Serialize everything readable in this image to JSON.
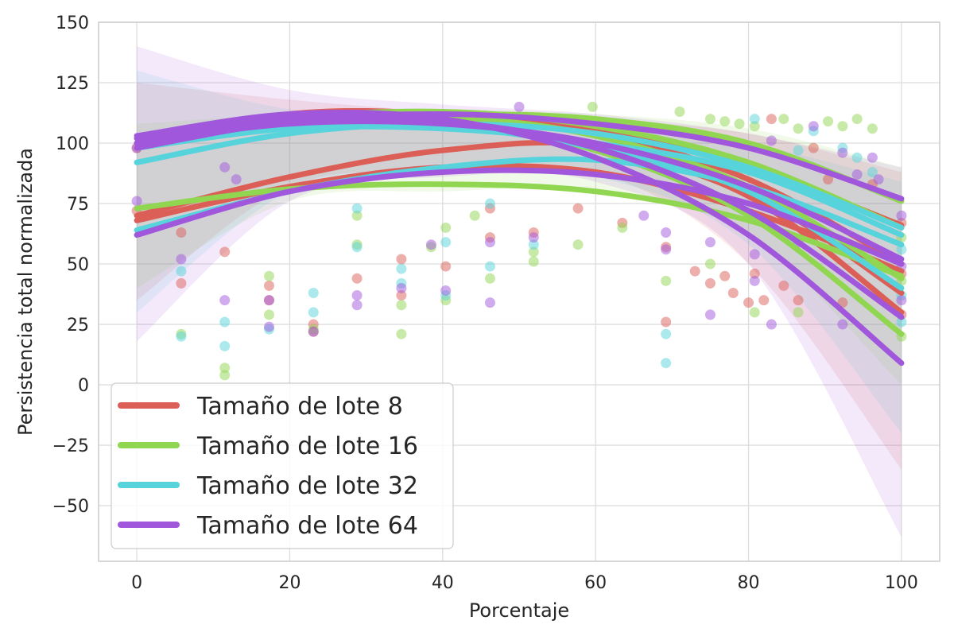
{
  "chart_data": {
    "type": "scatter",
    "title": "",
    "xlabel": "Porcentaje",
    "ylabel": "Persistencia total normalizada",
    "xlim": [
      -5,
      105
    ],
    "ylim": [
      -73,
      150
    ],
    "xticks": [
      0,
      20,
      40,
      60,
      80,
      100
    ],
    "yticks": [
      -50,
      -25,
      0,
      25,
      50,
      75,
      100,
      125,
      150
    ],
    "xtick_labels": [
      "0",
      "20",
      "40",
      "60",
      "80",
      "100"
    ],
    "ytick_labels": [
      "−50",
      "−25",
      "0",
      "25",
      "50",
      "75",
      "100",
      "125",
      "150"
    ],
    "grid": true,
    "legend_position": "lower-left",
    "series": [
      {
        "name": "Tamaño de lote 8",
        "color": "#db5f57",
        "fits": [
          {
            "x": [
              0,
              20,
              40,
              60,
              80,
              100
            ],
            "y": [
              98,
              112,
              112,
              105,
              90,
              66
            ]
          },
          {
            "x": [
              0,
              20,
              40,
              60,
              80,
              100
            ],
            "y": [
              70,
              86,
              97,
              99,
              80,
              38
            ]
          },
          {
            "x": [
              0,
              20,
              40,
              60,
              80,
              100
            ],
            "y": [
              100,
              109,
              110,
              104,
              85,
              50
            ]
          },
          {
            "x": [
              0,
              20,
              40,
              60,
              80,
              100
            ],
            "y": [
              68,
              82,
              90,
              88,
              72,
              47
            ]
          },
          {
            "x": [
              0,
              20,
              40,
              60,
              80,
              100
            ],
            "y": [
              102,
              110,
              108,
              98,
              78,
              30
            ]
          }
        ],
        "points": [
          [
            0,
            98
          ],
          [
            0,
            72
          ],
          [
            5.8,
            63
          ],
          [
            5.8,
            42
          ],
          [
            11.5,
            55
          ],
          [
            17.3,
            41
          ],
          [
            17.3,
            35
          ],
          [
            23.1,
            25
          ],
          [
            23.1,
            22
          ],
          [
            28.8,
            44
          ],
          [
            34.6,
            52
          ],
          [
            34.6,
            37
          ],
          [
            40.4,
            49
          ],
          [
            46.2,
            61
          ],
          [
            46.2,
            73
          ],
          [
            51.9,
            63
          ],
          [
            57.7,
            73
          ],
          [
            63.5,
            67
          ],
          [
            69.2,
            26
          ],
          [
            69.2,
            57
          ],
          [
            73,
            47
          ],
          [
            75,
            42
          ],
          [
            76.9,
            45
          ],
          [
            78,
            38
          ],
          [
            80,
            34
          ],
          [
            80.8,
            46
          ],
          [
            82,
            35
          ],
          [
            83,
            110
          ],
          [
            84.6,
            41
          ],
          [
            86.5,
            35
          ],
          [
            88.5,
            98
          ],
          [
            90.4,
            85
          ],
          [
            92.3,
            34
          ],
          [
            96.2,
            83
          ],
          [
            100,
            29
          ],
          [
            100,
            46
          ],
          [
            100,
            67
          ]
        ],
        "band": {
          "x": [
            0,
            20,
            40,
            60,
            80,
            100
          ],
          "upper": [
            125,
            118,
            113,
            110,
            104,
            88
          ],
          "lower": [
            35,
            82,
            88,
            88,
            50,
            -35
          ]
        }
      },
      {
        "name": "Tamaño de lote 16",
        "color": "#91d651",
        "fits": [
          {
            "x": [
              0,
              20,
              40,
              60,
              80,
              100
            ],
            "y": [
              73,
              81,
              83,
              80,
              68,
              45
            ]
          },
          {
            "x": [
              0,
              20,
              40,
              60,
              80,
              100
            ],
            "y": [
              100,
              110,
              112,
              110,
              100,
              76
            ]
          },
          {
            "x": [
              0,
              20,
              40,
              60,
              80,
              100
            ],
            "y": [
              98,
              110,
              113,
              107,
              92,
              65
            ]
          },
          {
            "x": [
              0,
              20,
              40,
              60,
              80,
              100
            ],
            "y": [
              102,
              111,
              111,
              103,
              82,
              44
            ]
          },
          {
            "x": [
              0,
              20,
              40,
              60,
              80,
              100
            ],
            "y": [
              100,
              109,
              108,
              97,
              70,
              21
            ]
          }
        ],
        "points": [
          [
            5.8,
            21
          ],
          [
            11.5,
            4
          ],
          [
            11.5,
            7
          ],
          [
            17.3,
            45
          ],
          [
            17.3,
            29
          ],
          [
            23.1,
            23
          ],
          [
            28.8,
            58
          ],
          [
            28.8,
            70
          ],
          [
            34.6,
            21
          ],
          [
            34.6,
            33
          ],
          [
            38.5,
            57
          ],
          [
            40.4,
            35
          ],
          [
            40.4,
            65
          ],
          [
            44.2,
            70
          ],
          [
            46.2,
            44
          ],
          [
            51.9,
            51
          ],
          [
            51.9,
            55
          ],
          [
            57.7,
            58
          ],
          [
            59.6,
            115
          ],
          [
            63.5,
            65
          ],
          [
            69.2,
            43
          ],
          [
            71,
            113
          ],
          [
            75,
            50
          ],
          [
            75,
            110
          ],
          [
            76.9,
            109
          ],
          [
            78.8,
            108
          ],
          [
            80.8,
            30
          ],
          [
            80.8,
            107
          ],
          [
            84.6,
            110
          ],
          [
            86.5,
            30
          ],
          [
            86.5,
            106
          ],
          [
            90.4,
            109
          ],
          [
            92.3,
            107
          ],
          [
            94.2,
            110
          ],
          [
            96.2,
            106
          ],
          [
            100,
            20
          ],
          [
            100,
            43
          ],
          [
            100,
            61
          ]
        ],
        "band": {
          "x": [
            0,
            20,
            40,
            60,
            80,
            100
          ],
          "upper": [
            108,
            112,
            114,
            112,
            106,
            90
          ],
          "lower": [
            40,
            76,
            80,
            80,
            62,
            0
          ]
        }
      },
      {
        "name": "Tamaño de lote 32",
        "color": "#57d3db",
        "fits": [
          {
            "x": [
              0,
              20,
              40,
              60,
              80,
              100
            ],
            "y": [
              64,
              80,
              90,
              93,
              82,
              58
            ]
          },
          {
            "x": [
              0,
              20,
              40,
              60,
              80,
              100
            ],
            "y": [
              92,
              104,
              108,
              104,
              90,
              65
            ]
          },
          {
            "x": [
              0,
              20,
              40,
              60,
              80,
              100
            ],
            "y": [
              100,
              108,
              107,
              98,
              80,
              40
            ]
          },
          {
            "x": [
              0,
              20,
              40,
              60,
              80,
              100
            ],
            "y": [
              98,
              106,
              106,
              100,
              88,
              62
            ]
          }
        ],
        "points": [
          [
            5.8,
            20
          ],
          [
            5.8,
            47
          ],
          [
            11.5,
            16
          ],
          [
            11.5,
            26
          ],
          [
            17.3,
            23
          ],
          [
            23.1,
            30
          ],
          [
            23.1,
            38
          ],
          [
            28.8,
            57
          ],
          [
            28.8,
            73
          ],
          [
            34.6,
            42
          ],
          [
            34.6,
            48
          ],
          [
            40.4,
            37
          ],
          [
            40.4,
            59
          ],
          [
            46.2,
            49
          ],
          [
            46.2,
            75
          ],
          [
            51.9,
            58
          ],
          [
            69.2,
            21
          ],
          [
            69.2,
            9
          ],
          [
            71,
            105
          ],
          [
            80.8,
            110
          ],
          [
            86.5,
            97
          ],
          [
            88.5,
            105
          ],
          [
            92.3,
            98
          ],
          [
            94.2,
            94
          ],
          [
            96.2,
            88
          ],
          [
            100,
            26
          ],
          [
            100,
            37
          ],
          [
            100,
            56
          ]
        ],
        "band": {
          "x": [
            0,
            20,
            40,
            60,
            80,
            100
          ],
          "upper": [
            130,
            114,
            112,
            108,
            100,
            84
          ],
          "lower": [
            30,
            80,
            88,
            86,
            58,
            -20
          ]
        }
      },
      {
        "name": "Tamaño de lote 64",
        "color": "#a157db",
        "fits": [
          {
            "x": [
              0,
              20,
              40,
              60,
              80,
              100
            ],
            "y": [
              98,
              109,
              112,
              108,
              98,
              77
            ]
          },
          {
            "x": [
              0,
              20,
              40,
              60,
              80,
              100
            ],
            "y": [
              62,
              80,
              88,
              87,
              75,
              50
            ]
          },
          {
            "x": [
              0,
              20,
              40,
              60,
              80,
              100
            ],
            "y": [
              100,
              108,
              108,
              100,
              82,
              52
            ]
          },
          {
            "x": [
              0,
              20,
              40,
              60,
              80,
              100
            ],
            "y": [
              102,
              110,
              109,
              98,
              72,
              28
            ]
          },
          {
            "x": [
              0,
              20,
              40,
              60,
              80,
              100
            ],
            "y": [
              103,
              112,
              110,
              94,
              62,
              9
            ]
          }
        ],
        "points": [
          [
            0,
            76
          ],
          [
            0,
            98
          ],
          [
            5.8,
            52
          ],
          [
            11.5,
            35
          ],
          [
            11.5,
            90
          ],
          [
            13,
            85
          ],
          [
            17.3,
            24
          ],
          [
            17.3,
            35
          ],
          [
            23.1,
            22
          ],
          [
            28.8,
            33
          ],
          [
            28.8,
            37
          ],
          [
            34.6,
            40
          ],
          [
            38.5,
            58
          ],
          [
            40.4,
            39
          ],
          [
            46.2,
            34
          ],
          [
            46.2,
            59
          ],
          [
            50,
            115
          ],
          [
            51.9,
            61
          ],
          [
            66.3,
            70
          ],
          [
            69.2,
            56
          ],
          [
            69.2,
            63
          ],
          [
            75,
            29
          ],
          [
            75,
            59
          ],
          [
            80.8,
            43
          ],
          [
            80.8,
            54
          ],
          [
            83,
            25
          ],
          [
            83,
            101
          ],
          [
            86.5,
            59
          ],
          [
            88.5,
            107
          ],
          [
            92.3,
            25
          ],
          [
            92.3,
            96
          ],
          [
            94.2,
            87
          ],
          [
            96.2,
            94
          ],
          [
            97,
            85
          ],
          [
            100,
            35
          ],
          [
            100,
            49
          ],
          [
            100,
            70
          ]
        ],
        "band": {
          "x": [
            0,
            20,
            40,
            60,
            80,
            100
          ],
          "upper": [
            140,
            122,
            116,
            112,
            104,
            90
          ],
          "lower": [
            18,
            76,
            86,
            84,
            50,
            -63
          ]
        }
      }
    ]
  }
}
